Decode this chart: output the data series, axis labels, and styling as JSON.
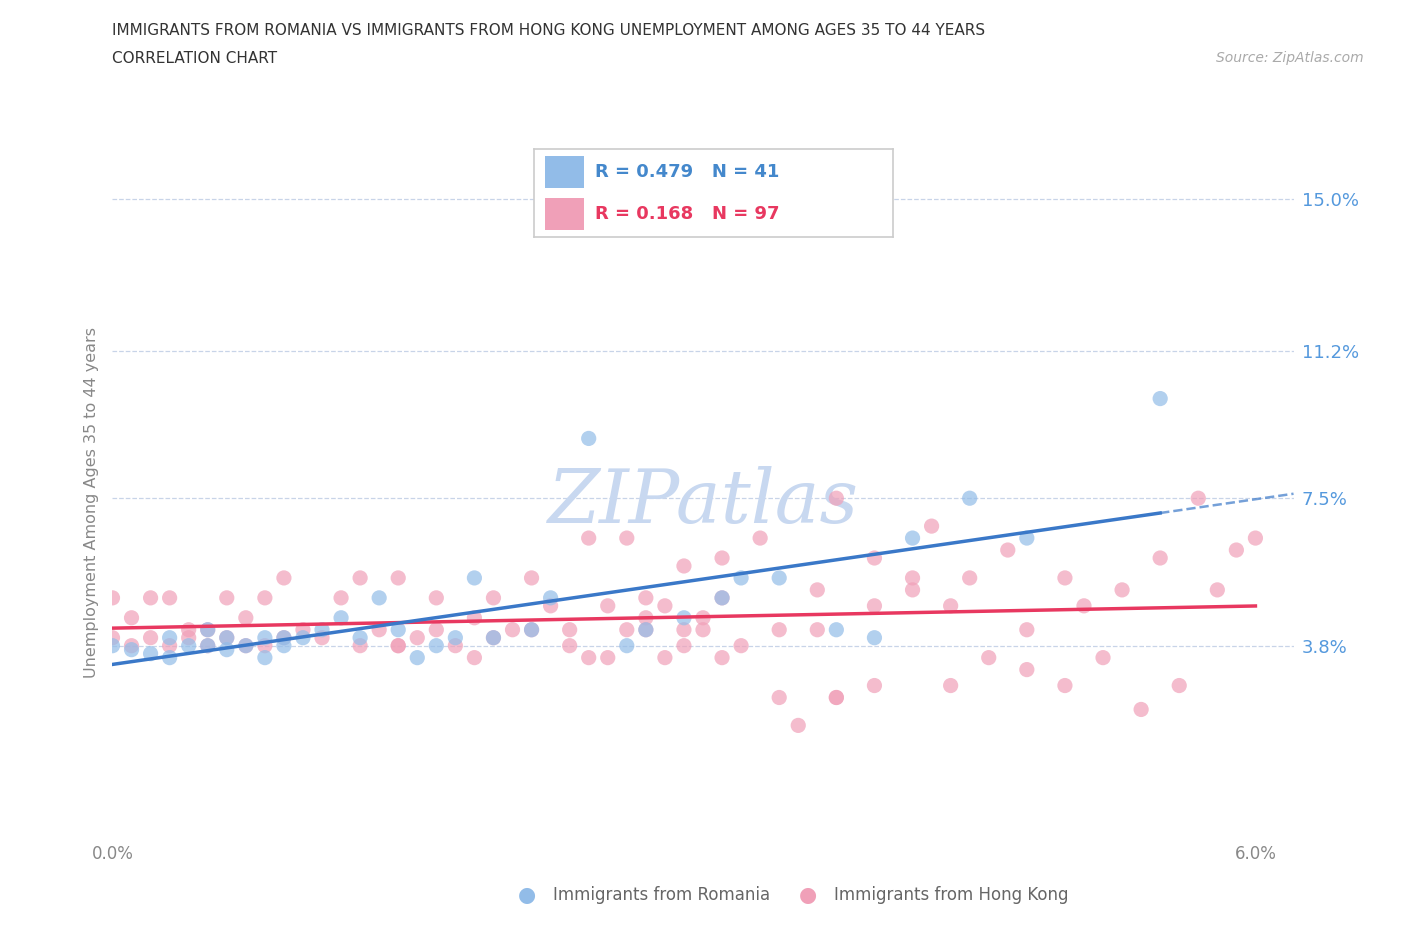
{
  "title_line1": "IMMIGRANTS FROM ROMANIA VS IMMIGRANTS FROM HONG KONG UNEMPLOYMENT AMONG AGES 35 TO 44 YEARS",
  "title_line2": "CORRELATION CHART",
  "source_text": "Source: ZipAtlas.com",
  "ylabel": "Unemployment Among Ages 35 to 44 years",
  "xlim": [
    0.0,
    0.062
  ],
  "ylim": [
    -0.01,
    0.158
  ],
  "ytick_values": [
    0.038,
    0.075,
    0.112,
    0.15
  ],
  "ytick_labels": [
    "3.8%",
    "7.5%",
    "11.2%",
    "15.0%"
  ],
  "grid_values": [
    0.15,
    0.112,
    0.075,
    0.038
  ],
  "xtick_values": [
    0.0,
    0.01,
    0.02,
    0.03,
    0.04,
    0.05,
    0.06
  ],
  "xtick_labels": [
    "0.0%",
    "",
    "",
    "",
    "",
    "",
    "6.0%"
  ],
  "grid_color": "#c8d4e8",
  "color_romania": "#92bce8",
  "color_hongkong": "#f0a0b8",
  "color_trendline_romania": "#3a78c8",
  "color_trendline_hongkong": "#e83860",
  "legend_R_romania": "0.479",
  "legend_N_romania": "41",
  "legend_R_hongkong": "0.168",
  "legend_N_hongkong": "97",
  "watermark_color": "#c8d8f0",
  "romania_x": [
    0.0,
    0.001,
    0.002,
    0.003,
    0.003,
    0.004,
    0.005,
    0.005,
    0.006,
    0.006,
    0.007,
    0.008,
    0.008,
    0.009,
    0.009,
    0.01,
    0.011,
    0.012,
    0.013,
    0.014,
    0.015,
    0.016,
    0.017,
    0.018,
    0.019,
    0.02,
    0.022,
    0.023,
    0.025,
    0.027,
    0.028,
    0.03,
    0.032,
    0.033,
    0.035,
    0.038,
    0.04,
    0.042,
    0.045,
    0.048,
    0.055
  ],
  "romania_y": [
    0.038,
    0.037,
    0.036,
    0.035,
    0.04,
    0.038,
    0.042,
    0.038,
    0.037,
    0.04,
    0.038,
    0.04,
    0.035,
    0.04,
    0.038,
    0.04,
    0.042,
    0.045,
    0.04,
    0.05,
    0.042,
    0.035,
    0.038,
    0.04,
    0.055,
    0.04,
    0.042,
    0.05,
    0.09,
    0.038,
    0.042,
    0.045,
    0.05,
    0.055,
    0.055,
    0.042,
    0.04,
    0.065,
    0.075,
    0.065,
    0.1
  ],
  "hongkong_x": [
    0.0,
    0.0,
    0.001,
    0.001,
    0.002,
    0.002,
    0.003,
    0.003,
    0.004,
    0.004,
    0.005,
    0.005,
    0.006,
    0.006,
    0.007,
    0.007,
    0.008,
    0.008,
    0.009,
    0.009,
    0.01,
    0.011,
    0.012,
    0.013,
    0.013,
    0.014,
    0.015,
    0.015,
    0.016,
    0.017,
    0.018,
    0.019,
    0.02,
    0.021,
    0.022,
    0.023,
    0.024,
    0.025,
    0.026,
    0.027,
    0.028,
    0.029,
    0.03,
    0.031,
    0.032,
    0.034,
    0.035,
    0.037,
    0.038,
    0.04,
    0.042,
    0.043,
    0.045,
    0.047,
    0.048,
    0.05,
    0.051,
    0.053,
    0.055,
    0.057,
    0.058,
    0.059,
    0.06,
    0.025,
    0.027,
    0.029,
    0.031,
    0.033,
    0.035,
    0.037,
    0.022,
    0.024,
    0.026,
    0.028,
    0.03,
    0.032,
    0.015,
    0.017,
    0.019,
    0.02,
    0.038,
    0.04,
    0.036,
    0.028,
    0.03,
    0.032,
    0.044,
    0.046,
    0.048,
    0.05,
    0.052,
    0.054,
    0.056,
    0.042,
    0.044,
    0.038,
    0.04
  ],
  "hongkong_y": [
    0.04,
    0.05,
    0.038,
    0.045,
    0.04,
    0.05,
    0.038,
    0.05,
    0.04,
    0.042,
    0.038,
    0.042,
    0.04,
    0.05,
    0.038,
    0.045,
    0.038,
    0.05,
    0.04,
    0.055,
    0.042,
    0.04,
    0.05,
    0.038,
    0.055,
    0.042,
    0.055,
    0.038,
    0.04,
    0.05,
    0.038,
    0.045,
    0.05,
    0.042,
    0.055,
    0.048,
    0.042,
    0.065,
    0.048,
    0.065,
    0.05,
    0.048,
    0.058,
    0.045,
    0.06,
    0.065,
    0.042,
    0.052,
    0.075,
    0.06,
    0.052,
    0.068,
    0.055,
    0.062,
    0.042,
    0.055,
    0.048,
    0.052,
    0.06,
    0.075,
    0.052,
    0.062,
    0.065,
    0.035,
    0.042,
    0.035,
    0.042,
    0.038,
    0.025,
    0.042,
    0.042,
    0.038,
    0.035,
    0.042,
    0.042,
    0.035,
    0.038,
    0.042,
    0.035,
    0.04,
    0.025,
    0.048,
    0.018,
    0.045,
    0.038,
    0.05,
    0.028,
    0.035,
    0.032,
    0.028,
    0.035,
    0.022,
    0.028,
    0.055,
    0.048,
    0.025,
    0.028
  ]
}
